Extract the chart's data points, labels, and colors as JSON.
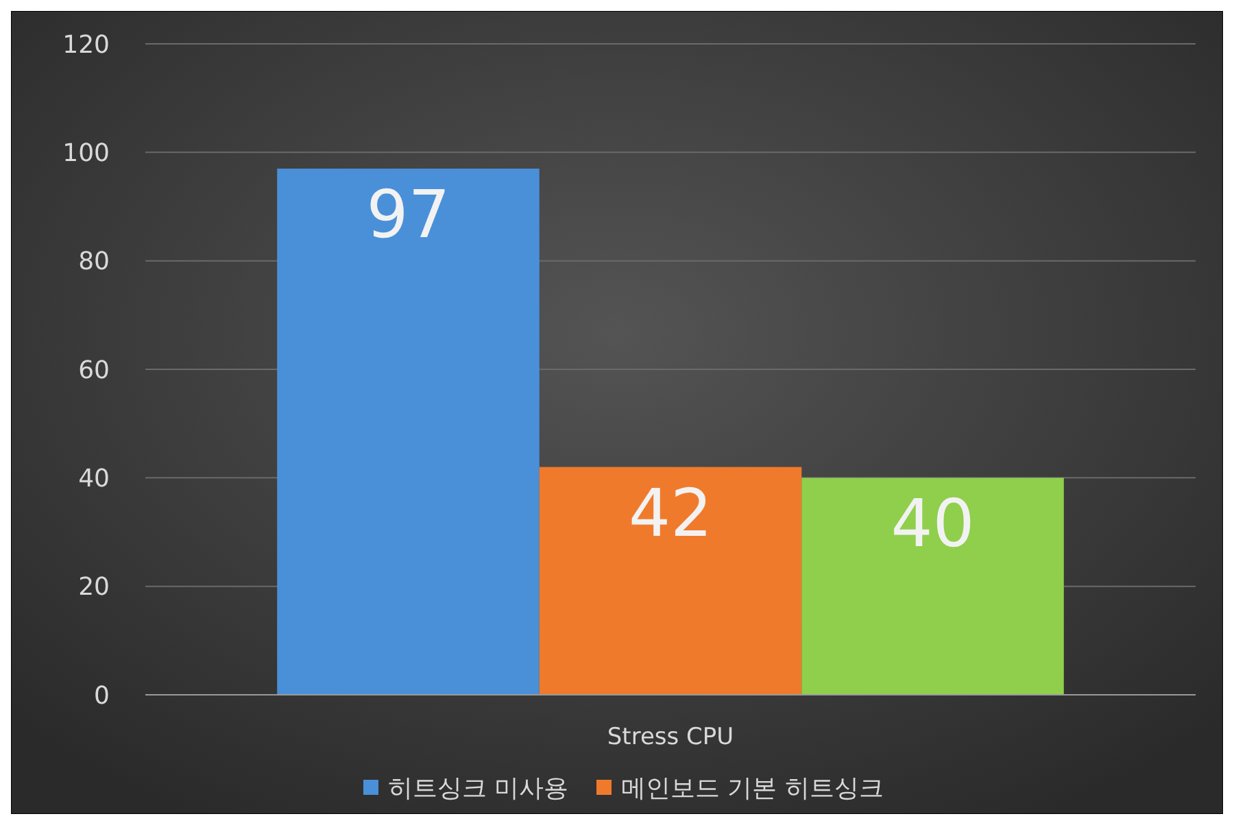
{
  "chart_data": {
    "type": "bar",
    "categories": [
      "Stress CPU"
    ],
    "series": [
      {
        "name": "히트싱크 미사용",
        "color": "#4a90d9",
        "values": [
          97
        ]
      },
      {
        "name": "메인보드 기본 히트싱크",
        "color": "#f07a2c",
        "values": [
          42
        ]
      },
      {
        "color": "#8fcf4c",
        "values": [
          40
        ]
      }
    ],
    "ylim": [
      0,
      120
    ],
    "yticks": [
      0,
      20,
      40,
      60,
      80,
      100,
      120
    ],
    "grid": "y",
    "data_labels": true,
    "legend": "bottom"
  }
}
